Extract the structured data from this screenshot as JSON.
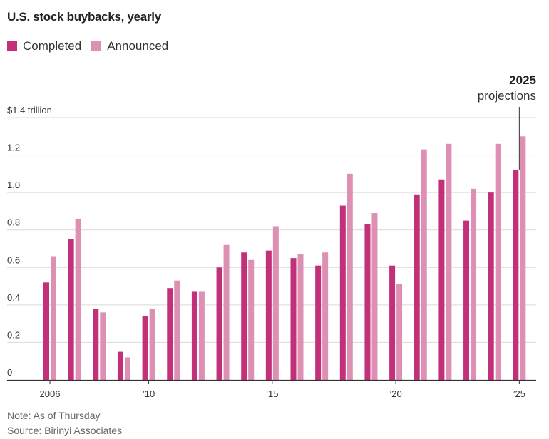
{
  "chart_data": {
    "type": "bar",
    "title": "U.S. stock buybacks, yearly",
    "ylabel": "",
    "xlabel": "",
    "ylim": [
      0,
      1.4
    ],
    "y_ticks": [
      {
        "value": 0,
        "label": "0"
      },
      {
        "value": 0.2,
        "label": "0.2"
      },
      {
        "value": 0.4,
        "label": "0.4"
      },
      {
        "value": 0.6,
        "label": "0.6"
      },
      {
        "value": 0.8,
        "label": "0.8"
      },
      {
        "value": 1.0,
        "label": "1.0"
      },
      {
        "value": 1.2,
        "label": "1.2"
      },
      {
        "value": 1.4,
        "label": "$1.4 trillion"
      }
    ],
    "grid": true,
    "categories": [
      2006,
      2007,
      2008,
      2009,
      2010,
      2011,
      2012,
      2013,
      2014,
      2015,
      2016,
      2017,
      2018,
      2019,
      2020,
      2021,
      2022,
      2023,
      2024,
      2025
    ],
    "x_ticks": [
      {
        "year": 2006,
        "label": "2006"
      },
      {
        "year": 2010,
        "label": "’10"
      },
      {
        "year": 2015,
        "label": "’15"
      },
      {
        "year": 2020,
        "label": "’20"
      },
      {
        "year": 2025,
        "label": "’25"
      }
    ],
    "series": [
      {
        "name": "Completed",
        "color": "#c2307a",
        "values": [
          0.52,
          0.75,
          0.38,
          0.15,
          0.34,
          0.49,
          0.47,
          0.6,
          0.68,
          0.69,
          0.65,
          0.61,
          0.93,
          0.83,
          0.61,
          0.99,
          1.07,
          0.85,
          1.0,
          1.12
        ]
      },
      {
        "name": "Announced",
        "color": "#dd8fb4",
        "values": [
          0.66,
          0.86,
          0.36,
          0.12,
          0.38,
          0.53,
          0.47,
          0.72,
          0.64,
          0.82,
          0.67,
          0.68,
          1.1,
          0.89,
          0.51,
          1.23,
          1.26,
          1.02,
          1.26,
          1.3
        ]
      }
    ],
    "annotation": {
      "year": 2025,
      "bold": "2025",
      "text": "projections"
    },
    "legend_position": "top-left"
  },
  "footer": {
    "note": "Note: As of Thursday",
    "source": "Source: Birinyi Associates"
  }
}
